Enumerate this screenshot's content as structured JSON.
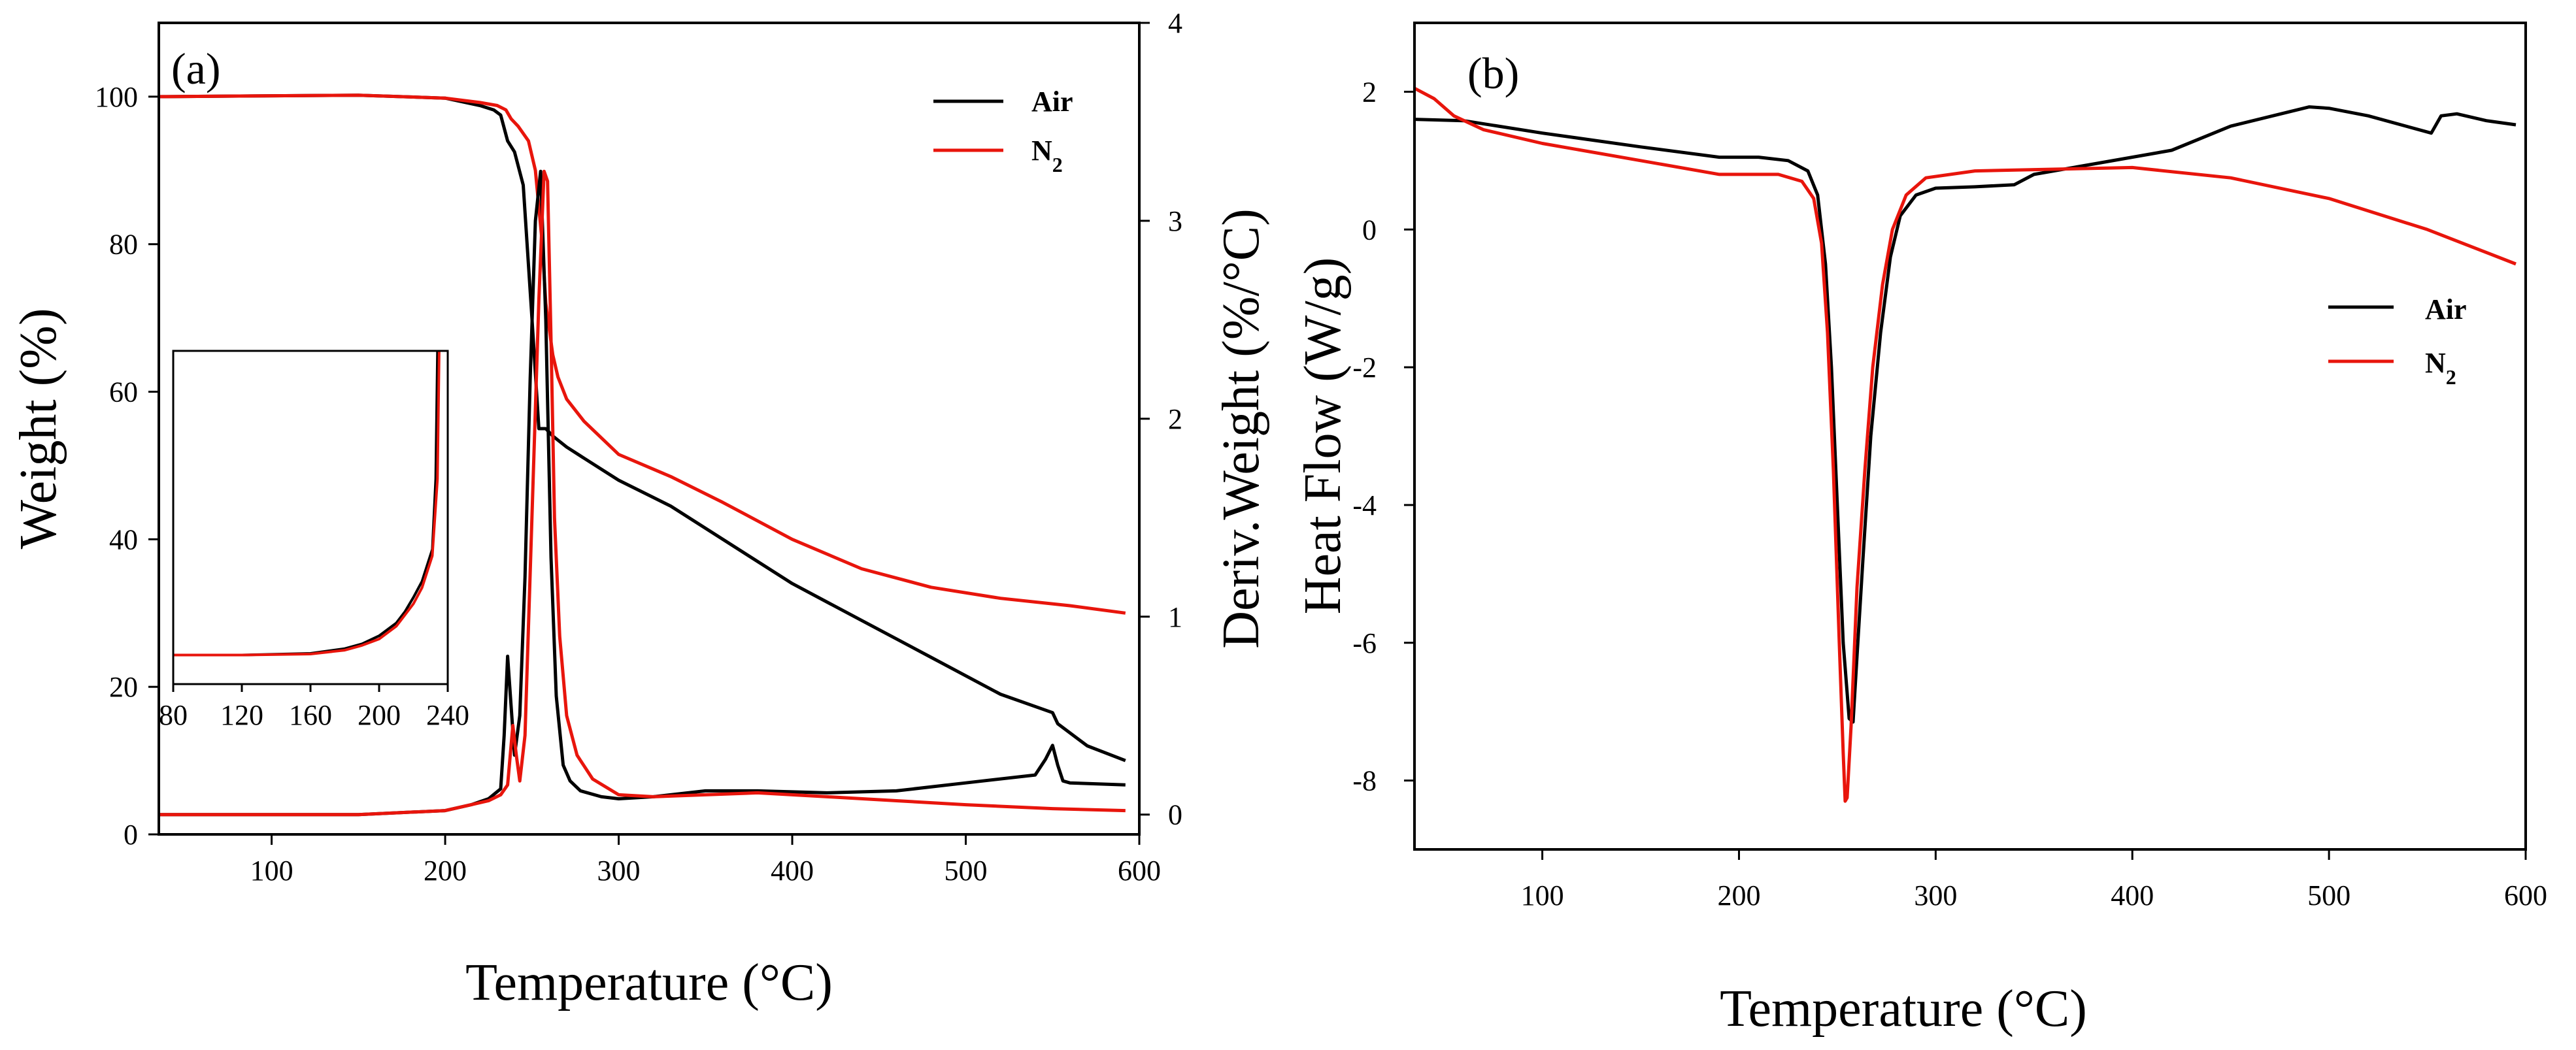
{
  "chart_data": [
    {
      "panel": "(a)",
      "type": "line",
      "xlabel": "Temperature (°C)",
      "ylabel": "Weight (%)",
      "y2label": "Deriv.Weight (%/°C)",
      "xlim": [
        35,
        600
      ],
      "ylim": [
        0,
        110
      ],
      "y2lim": [
        -0.1,
        4
      ],
      "xticks": [
        "100",
        "200",
        "300",
        "400",
        "500",
        "600"
      ],
      "yticks": [
        "0",
        "20",
        "40",
        "60",
        "80",
        "100"
      ],
      "y2ticks": [
        "0",
        "1",
        "2",
        "3",
        "4"
      ],
      "legend": [
        "Air",
        "N2"
      ],
      "series": [
        {
          "name": "Air",
          "axis": "left",
          "color": "#000000",
          "x": [
            35,
            150,
            200,
            220,
            228,
            232,
            236,
            240,
            245,
            250,
            254,
            258,
            262,
            270,
            280,
            300,
            330,
            360,
            400,
            440,
            480,
            520,
            550,
            553,
            570,
            592
          ],
          "y": [
            100,
            100.2,
            99.8,
            98.8,
            98.2,
            97.5,
            94,
            92.5,
            88,
            70,
            55,
            55,
            54,
            52.5,
            51,
            48,
            44.5,
            40,
            34,
            29,
            24,
            19,
            16.5,
            15,
            12,
            10
          ]
        },
        {
          "name": "N2",
          "axis": "left",
          "color": "#e8150c",
          "x": [
            35,
            150,
            200,
            220,
            230,
            235,
            238,
            242,
            248,
            252,
            256,
            258,
            262,
            265,
            270,
            280,
            300,
            330,
            360,
            400,
            440,
            480,
            520,
            560,
            592
          ],
          "y": [
            100,
            100.2,
            99.8,
            99.2,
            98.8,
            98.2,
            97,
            96,
            94,
            90,
            80,
            72,
            65,
            62,
            59,
            56,
            51.5,
            48.5,
            45,
            40,
            36,
            33.5,
            32,
            31,
            30
          ]
        },
        {
          "name": "Air",
          "axis": "right",
          "color": "#000000",
          "x": [
            35,
            150,
            200,
            215,
            225,
            232,
            234,
            236,
            238,
            240,
            243,
            246,
            249,
            252,
            255,
            258,
            261,
            264,
            268,
            272,
            278,
            290,
            300,
            320,
            350,
            380,
            420,
            460,
            500,
            540,
            546,
            550,
            553,
            556,
            560,
            592
          ],
          "y": [
            0,
            0,
            0.02,
            0.05,
            0.08,
            0.13,
            0.4,
            0.8,
            0.55,
            0.3,
            0.5,
            1.2,
            2.2,
            3.0,
            3.25,
            2.5,
            1.3,
            0.6,
            0.25,
            0.17,
            0.12,
            0.09,
            0.08,
            0.09,
            0.12,
            0.12,
            0.11,
            0.12,
            0.16,
            0.2,
            0.28,
            0.35,
            0.25,
            0.17,
            0.16,
            0.15
          ]
        },
        {
          "name": "N2",
          "axis": "right",
          "color": "#e8150c",
          "x": [
            35,
            150,
            200,
            215,
            225,
            232,
            236,
            239,
            241,
            243,
            246,
            250,
            254,
            257,
            259,
            261,
            263,
            266,
            270,
            276,
            285,
            300,
            320,
            350,
            380,
            420,
            460,
            500,
            550,
            592
          ],
          "y": [
            0,
            0,
            0.02,
            0.05,
            0.07,
            0.1,
            0.15,
            0.45,
            0.3,
            0.17,
            0.4,
            1.5,
            2.6,
            3.25,
            3.2,
            2.4,
            1.5,
            0.9,
            0.5,
            0.3,
            0.18,
            0.1,
            0.09,
            0.1,
            0.11,
            0.09,
            0.07,
            0.05,
            0.03,
            0.02
          ]
        }
      ],
      "inset": {
        "xlim": [
          80,
          240
        ],
        "ylim": [
          0,
          100
        ],
        "xticks": [
          "80",
          "120",
          "160",
          "200",
          "240"
        ],
        "series": [
          {
            "name": "Air",
            "color": "#000000",
            "x": [
              80,
              120,
              160,
              180,
              190,
              200,
              210,
              215,
              220,
              225,
              228,
              231,
              233,
              234
            ],
            "y": [
              5,
              5,
              5.5,
              7,
              8.5,
              11,
              15,
              18.5,
              23,
              28,
              33,
              38,
              60,
              100
            ]
          },
          {
            "name": "N2",
            "color": "#e8150c",
            "x": [
              80,
              120,
              160,
              180,
              190,
              200,
              210,
              215,
              220,
              225,
              228,
              231,
              234,
              235
            ],
            "y": [
              5,
              5,
              5.3,
              6.5,
              8,
              10,
              14,
              17.5,
              21,
              26,
              31,
              36,
              60,
              100
            ]
          }
        ]
      }
    },
    {
      "panel": "(b)",
      "type": "line",
      "xlabel": "Temperature (°C)",
      "ylabel": "Heat Flow (W/g)",
      "xlim": [
        35,
        600
      ],
      "ylim": [
        -9,
        3
      ],
      "xticks": [
        "100",
        "200",
        "300",
        "400",
        "500",
        "600"
      ],
      "yticks": [
        "2",
        "0",
        "-2",
        "-4",
        "-6",
        "-8"
      ],
      "legend": [
        "Air",
        "N2"
      ],
      "series": [
        {
          "name": "Air",
          "color": "#000000",
          "x": [
            35,
            60,
            100,
            150,
            190,
            210,
            225,
            235,
            240,
            244,
            247,
            250,
            253,
            256,
            258,
            260,
            263,
            267,
            272,
            277,
            282,
            290,
            300,
            320,
            340,
            350,
            380,
            420,
            450,
            490,
            500,
            520,
            552,
            557,
            565,
            580,
            595
          ],
          "y": [
            1.6,
            1.58,
            1.4,
            1.2,
            1.05,
            1.05,
            1.0,
            0.85,
            0.5,
            -0.5,
            -2.0,
            -4.0,
            -6.0,
            -7.1,
            -7.15,
            -6.2,
            -4.8,
            -3.0,
            -1.5,
            -0.4,
            0.2,
            0.5,
            0.6,
            0.62,
            0.65,
            0.8,
            0.95,
            1.15,
            1.5,
            1.78,
            1.76,
            1.65,
            1.4,
            1.65,
            1.68,
            1.58,
            1.52
          ]
        },
        {
          "name": "N2",
          "color": "#e8150c",
          "x": [
            35,
            45,
            55,
            70,
            100,
            150,
            190,
            220,
            232,
            238,
            242,
            245,
            248,
            251,
            253,
            254,
            255,
            257,
            260,
            264,
            268,
            273,
            278,
            285,
            295,
            320,
            400,
            450,
            500,
            550,
            595
          ],
          "y": [
            2.05,
            1.9,
            1.65,
            1.45,
            1.25,
            1.0,
            0.8,
            0.8,
            0.7,
            0.45,
            -0.2,
            -1.5,
            -3.5,
            -6.0,
            -7.6,
            -8.3,
            -8.25,
            -7.2,
            -5.2,
            -3.5,
            -2.0,
            -0.8,
            0.0,
            0.5,
            0.75,
            0.85,
            0.9,
            0.75,
            0.45,
            0.0,
            -0.5
          ]
        }
      ]
    }
  ]
}
